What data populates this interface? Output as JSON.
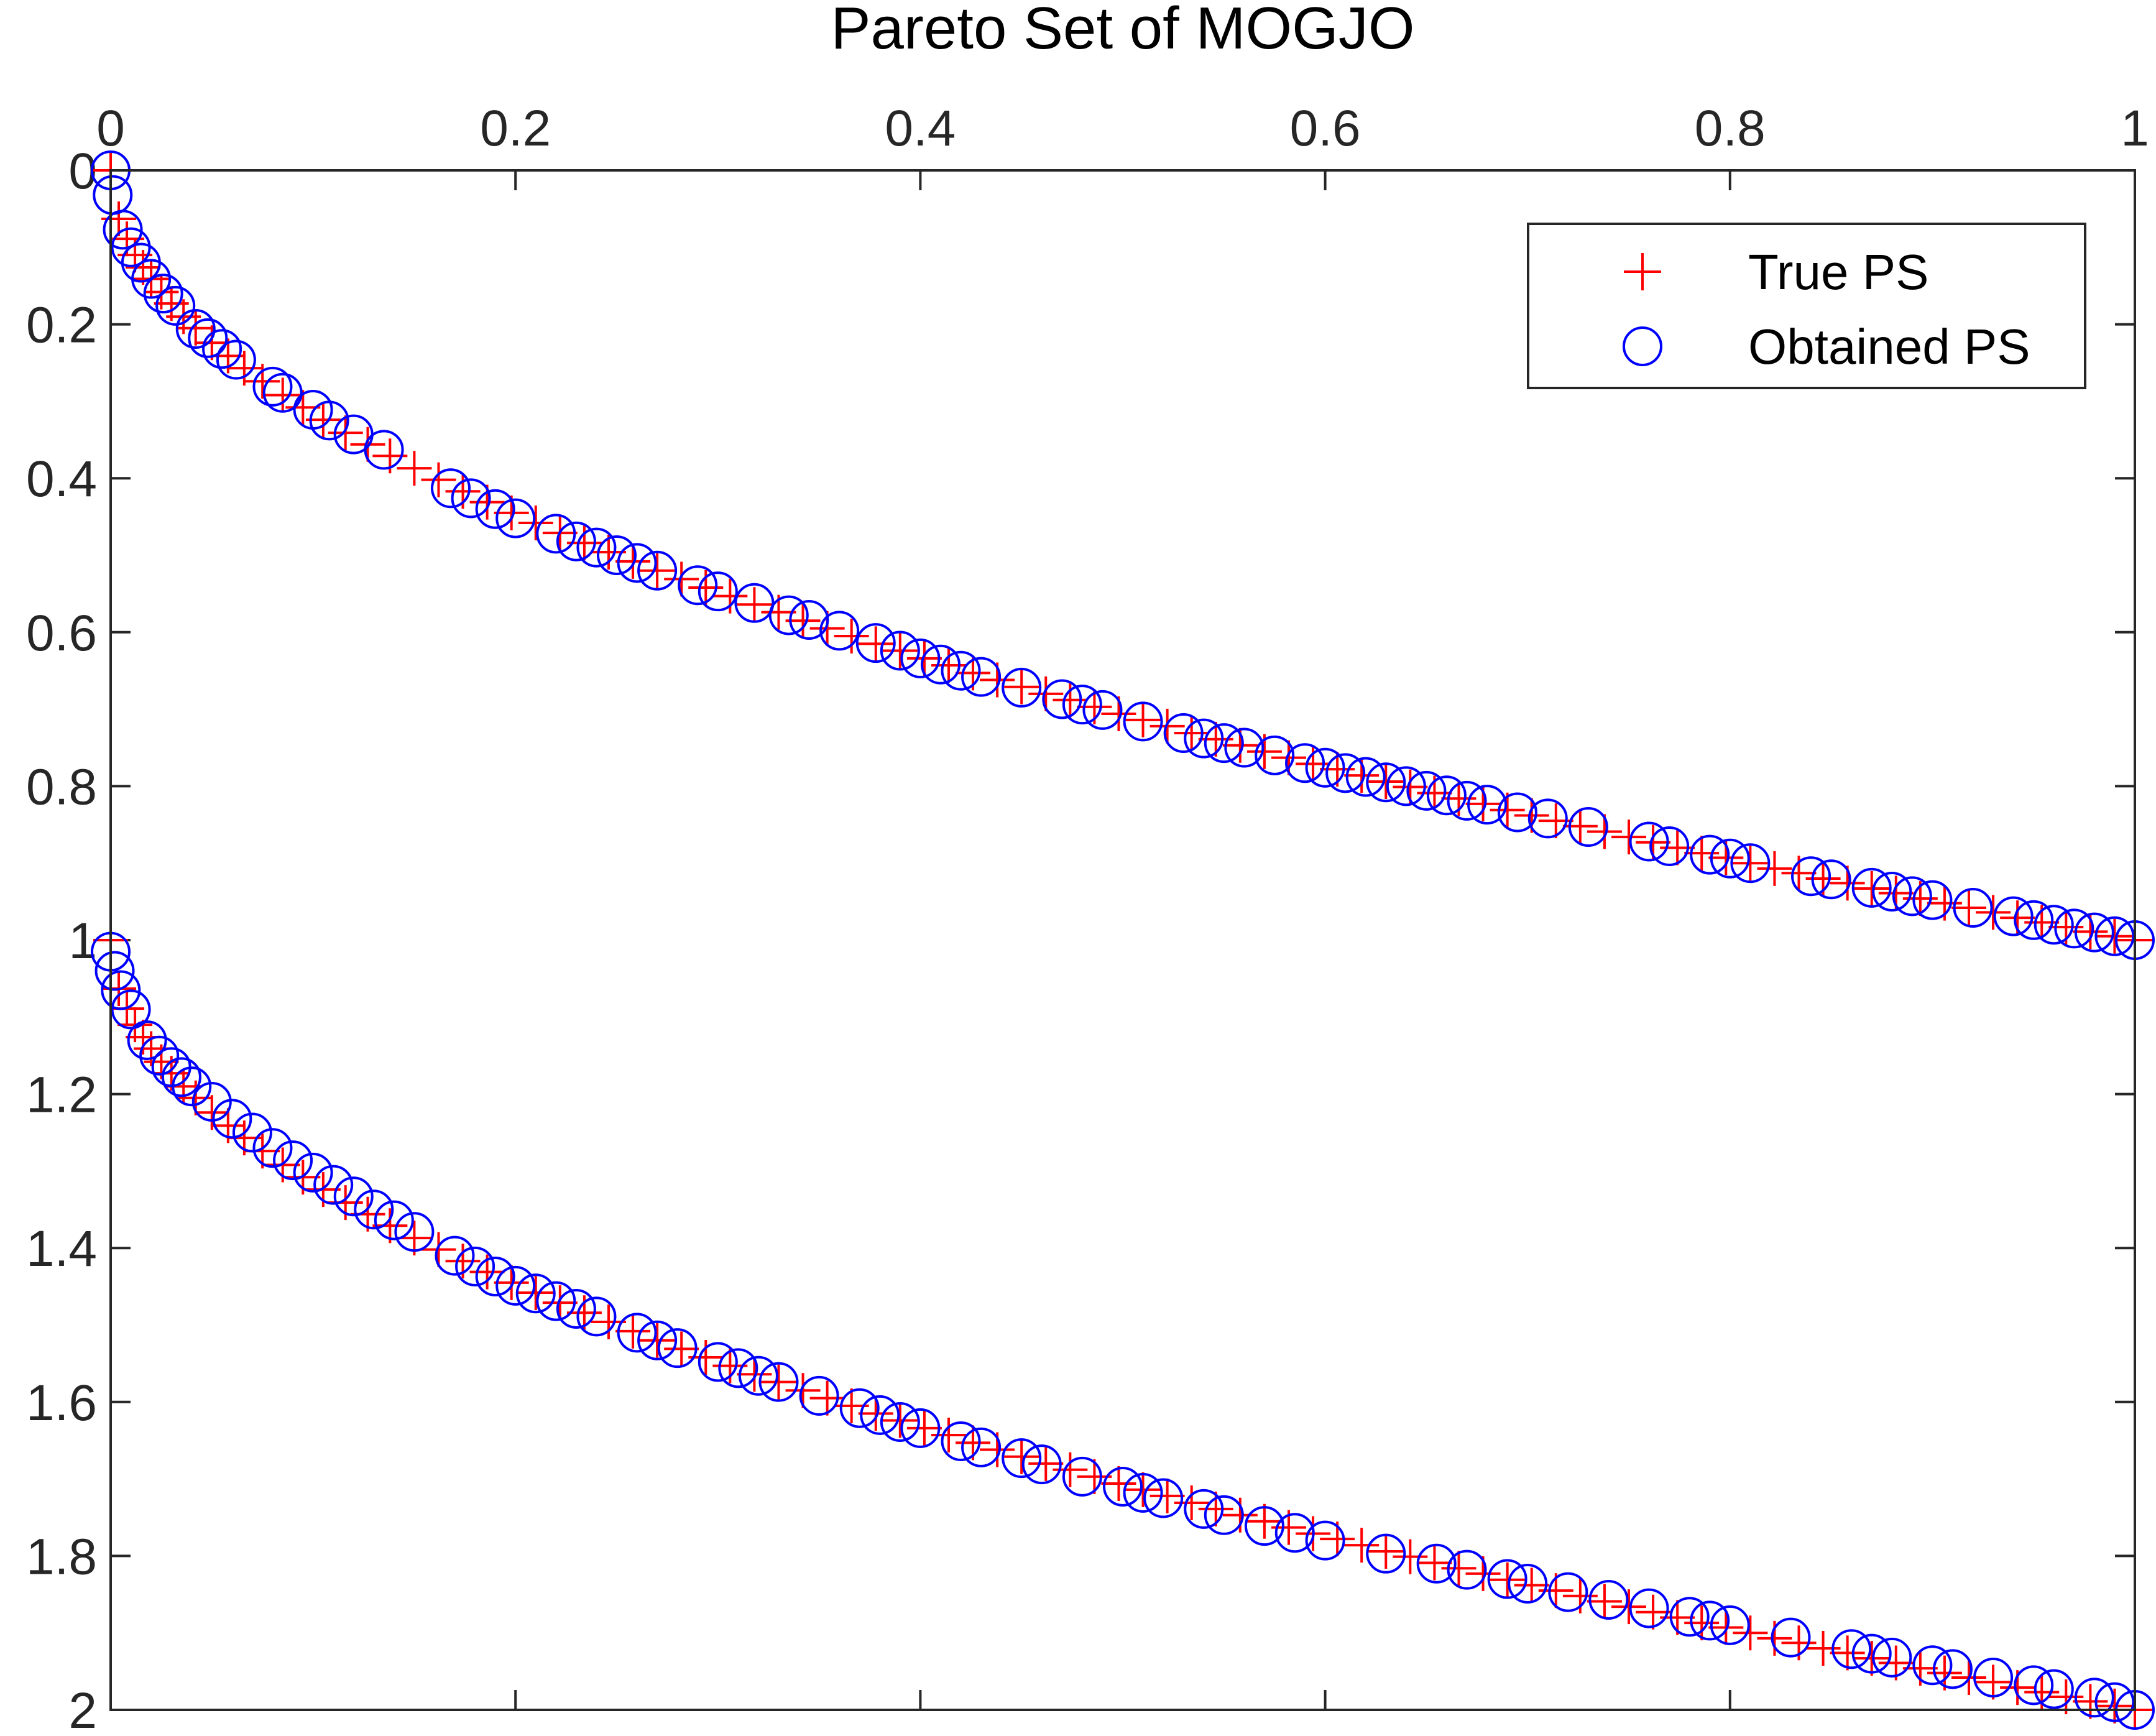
{
  "chart_data": {
    "type": "scatter",
    "title": "Pareto Set of MOGJO",
    "xlabel": "",
    "ylabel": "",
    "xlim": [
      0,
      1
    ],
    "ylim": [
      0,
      2
    ],
    "y_axis_reversed": true,
    "x_axis_location": "top",
    "x_ticks": [
      "0",
      "0.2",
      "0.4",
      "0.6",
      "0.8",
      "1"
    ],
    "y_ticks": [
      "0",
      "0.2",
      "0.4",
      "0.6",
      "0.8",
      "1",
      "1.2",
      "1.4",
      "1.6",
      "1.8",
      "2"
    ],
    "legend_position": "top-right",
    "grid": false,
    "box": true,
    "series": [
      {
        "name": "True PS",
        "marker": "plus",
        "color": "#ff0000",
        "branches": [
          {
            "x": [
              0,
              0.004,
              0.008,
              0.012,
              0.016,
              0.02,
              0.025,
              0.03,
              0.036,
              0.042,
              0.05,
              0.058,
              0.066,
              0.075,
              0.085,
              0.095,
              0.105,
              0.116,
              0.127,
              0.138,
              0.15,
              0.162,
              0.174,
              0.186,
              0.198,
              0.21,
              0.222,
              0.234,
              0.246,
              0.258,
              0.27,
              0.282,
              0.294,
              0.306,
              0.318,
              0.33,
              0.342,
              0.354,
              0.366,
              0.378,
              0.39,
              0.402,
              0.414,
              0.426,
              0.438,
              0.45,
              0.462,
              0.474,
              0.486,
              0.498,
              0.51,
              0.522,
              0.534,
              0.546,
              0.558,
              0.57,
              0.582,
              0.594,
              0.606,
              0.618,
              0.63,
              0.642,
              0.654,
              0.666,
              0.678,
              0.69,
              0.702,
              0.714,
              0.726,
              0.738,
              0.75,
              0.762,
              0.774,
              0.786,
              0.798,
              0.81,
              0.822,
              0.834,
              0.846,
              0.858,
              0.87,
              0.882,
              0.894,
              0.906,
              0.918,
              0.93,
              0.942,
              0.954,
              0.966,
              0.978,
              0.99,
              1
            ],
            "y": [
              0,
              0.063,
              0.089,
              0.11,
              0.126,
              0.141,
              0.158,
              0.173,
              0.19,
              0.205,
              0.224,
              0.241,
              0.257,
              0.274,
              0.292,
              0.308,
              0.324,
              0.341,
              0.356,
              0.371,
              0.387,
              0.402,
              0.417,
              0.431,
              0.445,
              0.458,
              0.471,
              0.484,
              0.496,
              0.508,
              0.52,
              0.531,
              0.542,
              0.553,
              0.564,
              0.574,
              0.585,
              0.595,
              0.605,
              0.615,
              0.624,
              0.634,
              0.643,
              0.653,
              0.662,
              0.671,
              0.68,
              0.688,
              0.697,
              0.706,
              0.714,
              0.722,
              0.731,
              0.739,
              0.747,
              0.755,
              0.763,
              0.771,
              0.778,
              0.786,
              0.794,
              0.801,
              0.809,
              0.816,
              0.823,
              0.831,
              0.838,
              0.845,
              0.852,
              0.859,
              0.866,
              0.873,
              0.88,
              0.887,
              0.893,
              0.9,
              0.907,
              0.913,
              0.92,
              0.926,
              0.933,
              0.939,
              0.946,
              0.952,
              0.958,
              0.964,
              0.971,
              0.977,
              0.983,
              0.989,
              0.995,
              1
            ]
          },
          {
            "x": [
              0,
              0.004,
              0.008,
              0.012,
              0.016,
              0.02,
              0.025,
              0.03,
              0.036,
              0.042,
              0.05,
              0.058,
              0.066,
              0.075,
              0.085,
              0.095,
              0.105,
              0.116,
              0.127,
              0.138,
              0.15,
              0.162,
              0.174,
              0.186,
              0.198,
              0.21,
              0.222,
              0.234,
              0.246,
              0.258,
              0.27,
              0.282,
              0.294,
              0.306,
              0.318,
              0.33,
              0.342,
              0.354,
              0.366,
              0.378,
              0.39,
              0.402,
              0.414,
              0.426,
              0.438,
              0.45,
              0.462,
              0.474,
              0.486,
              0.498,
              0.51,
              0.522,
              0.534,
              0.546,
              0.558,
              0.57,
              0.582,
              0.594,
              0.606,
              0.618,
              0.63,
              0.642,
              0.654,
              0.666,
              0.678,
              0.69,
              0.702,
              0.714,
              0.726,
              0.738,
              0.75,
              0.762,
              0.774,
              0.786,
              0.798,
              0.81,
              0.822,
              0.834,
              0.846,
              0.858,
              0.87,
              0.882,
              0.894,
              0.906,
              0.918,
              0.93,
              0.942,
              0.954,
              0.966,
              0.978,
              0.99,
              1
            ],
            "y": [
              1,
              1.063,
              1.089,
              1.11,
              1.126,
              1.141,
              1.158,
              1.173,
              1.19,
              1.205,
              1.224,
              1.241,
              1.257,
              1.274,
              1.292,
              1.308,
              1.324,
              1.341,
              1.356,
              1.371,
              1.387,
              1.402,
              1.417,
              1.431,
              1.445,
              1.458,
              1.471,
              1.484,
              1.496,
              1.508,
              1.52,
              1.531,
              1.542,
              1.553,
              1.564,
              1.574,
              1.585,
              1.595,
              1.605,
              1.615,
              1.624,
              1.634,
              1.643,
              1.653,
              1.662,
              1.671,
              1.68,
              1.688,
              1.697,
              1.706,
              1.714,
              1.722,
              1.731,
              1.739,
              1.747,
              1.755,
              1.763,
              1.771,
              1.778,
              1.786,
              1.794,
              1.801,
              1.809,
              1.816,
              1.823,
              1.831,
              1.838,
              1.845,
              1.852,
              1.859,
              1.866,
              1.873,
              1.88,
              1.887,
              1.893,
              1.9,
              1.907,
              1.913,
              1.92,
              1.926,
              1.933,
              1.939,
              1.946,
              1.952,
              1.958,
              1.964,
              1.971,
              1.977,
              1.983,
              1.989,
              1.995,
              2
            ]
          }
        ]
      },
      {
        "name": "Obtained PS",
        "marker": "circle",
        "color": "#0000ff",
        "branches": [
          {
            "x": [
              0,
              0.001,
              0.006,
              0.01,
              0.015,
              0.02,
              0.026,
              0.032,
              0.042,
              0.048,
              0.055,
              0.062,
              0.08,
              0.085,
              0.1,
              0.108,
              0.12,
              0.135,
              0.168,
              0.178,
              0.19,
              0.2,
              0.22,
              0.23,
              0.24,
              0.25,
              0.26,
              0.27,
              0.29,
              0.3,
              0.318,
              0.335,
              0.345,
              0.36,
              0.378,
              0.39,
              0.4,
              0.41,
              0.42,
              0.43,
              0.45,
              0.47,
              0.48,
              0.49,
              0.51,
              0.53,
              0.54,
              0.55,
              0.56,
              0.575,
              0.59,
              0.6,
              0.61,
              0.62,
              0.63,
              0.64,
              0.65,
              0.66,
              0.67,
              0.68,
              0.695,
              0.71,
              0.73,
              0.76,
              0.77,
              0.79,
              0.8,
              0.81,
              0.84,
              0.85,
              0.87,
              0.88,
              0.89,
              0.9,
              0.92,
              0.94,
              0.95,
              0.96,
              0.97,
              0.98,
              0.99,
              1
            ],
            "y": [
              0,
              0.032,
              0.077,
              0.1,
              0.12,
              0.141,
              0.16,
              0.176,
              0.206,
              0.218,
              0.232,
              0.246,
              0.281,
              0.289,
              0.311,
              0.325,
              0.343,
              0.363,
              0.413,
              0.426,
              0.44,
              0.452,
              0.472,
              0.482,
              0.49,
              0.5,
              0.51,
              0.52,
              0.539,
              0.547,
              0.562,
              0.578,
              0.584,
              0.598,
              0.614,
              0.624,
              0.634,
              0.642,
              0.65,
              0.658,
              0.672,
              0.687,
              0.694,
              0.701,
              0.716,
              0.731,
              0.738,
              0.744,
              0.75,
              0.76,
              0.77,
              0.776,
              0.783,
              0.788,
              0.795,
              0.8,
              0.806,
              0.812,
              0.819,
              0.824,
              0.834,
              0.842,
              0.853,
              0.872,
              0.878,
              0.889,
              0.894,
              0.9,
              0.917,
              0.921,
              0.932,
              0.937,
              0.943,
              0.948,
              0.958,
              0.969,
              0.974,
              0.98,
              0.985,
              0.99,
              0.995,
              1
            ]
          },
          {
            "x": [
              0,
              0.002,
              0.005,
              0.01,
              0.018,
              0.024,
              0.03,
              0.035,
              0.04,
              0.05,
              0.06,
              0.07,
              0.08,
              0.09,
              0.1,
              0.11,
              0.12,
              0.13,
              0.14,
              0.15,
              0.17,
              0.18,
              0.19,
              0.2,
              0.21,
              0.22,
              0.23,
              0.24,
              0.26,
              0.27,
              0.28,
              0.3,
              0.31,
              0.32,
              0.33,
              0.35,
              0.37,
              0.38,
              0.39,
              0.4,
              0.42,
              0.43,
              0.45,
              0.46,
              0.48,
              0.5,
              0.51,
              0.52,
              0.54,
              0.55,
              0.57,
              0.585,
              0.6,
              0.63,
              0.655,
              0.67,
              0.69,
              0.7,
              0.72,
              0.74,
              0.76,
              0.78,
              0.79,
              0.8,
              0.83,
              0.86,
              0.87,
              0.88,
              0.9,
              0.91,
              0.93,
              0.95,
              0.96,
              0.98,
              0.99,
              1
            ],
            "y": [
              1.015,
              1.04,
              1.065,
              1.09,
              1.13,
              1.15,
              1.165,
              1.178,
              1.19,
              1.21,
              1.232,
              1.25,
              1.27,
              1.286,
              1.302,
              1.318,
              1.333,
              1.35,
              1.364,
              1.379,
              1.41,
              1.424,
              1.437,
              1.449,
              1.459,
              1.469,
              1.479,
              1.489,
              1.51,
              1.52,
              1.53,
              1.548,
              1.556,
              1.566,
              1.574,
              1.592,
              1.608,
              1.617,
              1.626,
              1.634,
              1.651,
              1.659,
              1.673,
              1.681,
              1.697,
              1.71,
              1.718,
              1.725,
              1.739,
              1.747,
              1.761,
              1.77,
              1.78,
              1.797,
              1.81,
              1.818,
              1.83,
              1.836,
              1.847,
              1.857,
              1.868,
              1.879,
              1.884,
              1.89,
              1.906,
              1.921,
              1.927,
              1.932,
              1.942,
              1.947,
              1.958,
              1.968,
              1.973,
              1.984,
              1.99,
              2
            ]
          }
        ]
      }
    ]
  }
}
